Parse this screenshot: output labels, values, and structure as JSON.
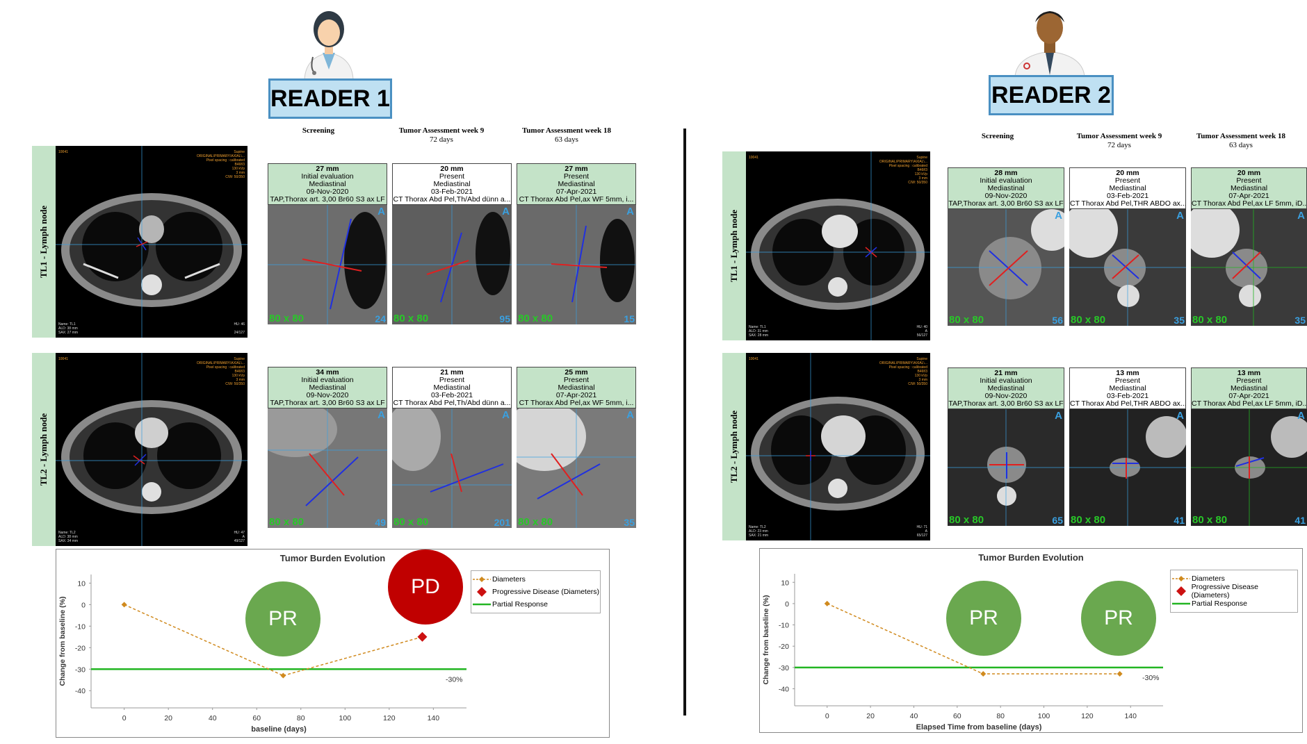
{
  "readers": [
    {
      "label": "READER 1",
      "column_headers": [
        {
          "title": "Screening",
          "sub": ""
        },
        {
          "title": "Tumor Assessment week 9",
          "sub": "72 days"
        },
        {
          "title": "Tumor Assessment week 18",
          "sub": "63 days"
        }
      ],
      "lesions": [
        {
          "name": "TL1 - Lymph node",
          "overview": {
            "tl": "10041",
            "tr": [
              "Supine",
              "ORIGINAL\\PRIMARY\\AXIAL\\...",
              "Pixel spacing : calibrated",
              "B46f/3",
              "130 kVp",
              "3 mm",
              "C/W: 50/350"
            ],
            "bl": [
              "Name: TL1",
              "ALD: 38 mm",
              "SAX: 27 mm"
            ],
            "br": [
              "HU: 46",
              "",
              "24/127"
            ]
          },
          "timepoints": [
            {
              "size": "27 mm",
              "status": "Initial evaluation",
              "location": "Mediastinal",
              "date": "09-Nov-2020",
              "series": "TAP,Thorax art. 3,00 Br60 S3 ax LF",
              "zoom": "80 x 80",
              "slice": "24"
            },
            {
              "size": "20 mm",
              "status": "Present",
              "location": "Mediastinal",
              "date": "03-Feb-2021",
              "series": "CT Thorax Abd Pel,Th/Abd dünn a...",
              "zoom": "80 x 80",
              "slice": "95"
            },
            {
              "size": "27 mm",
              "status": "Present",
              "location": "Mediastinal",
              "date": "07-Apr-2021",
              "series": "CT Thorax Abd Pel,ax WF 5mm, i...",
              "zoom": "80 x 80",
              "slice": "15"
            }
          ]
        },
        {
          "name": "TL2 - Lymph node",
          "overview": {
            "tl": "10041",
            "tr": [
              "Supine",
              "ORIGINAL\\PRIMARY\\AXIAL\\...",
              "Pixel spacing : calibrated",
              "B46f/3",
              "130 kVp",
              "3 mm",
              "C/W: 50/350"
            ],
            "bl": [
              "Name: TL2",
              "ALD: 38 mm",
              "SAX: 34 mm"
            ],
            "br": [
              "HU: 47",
              "A",
              "49/127"
            ]
          },
          "timepoints": [
            {
              "size": "34 mm",
              "status": "Initial evaluation",
              "location": "Mediastinal",
              "date": "09-Nov-2020",
              "series": "TAP,Thorax art. 3,00 Br60 S3 ax LF",
              "zoom": "80 x 80",
              "slice": "49"
            },
            {
              "size": "21 mm",
              "status": "Present",
              "location": "Mediastinal",
              "date": "03-Feb-2021",
              "series": "CT Thorax Abd Pel,Th/Abd dünn a...",
              "zoom": "80 x 80",
              "slice": "201"
            },
            {
              "size": "25 mm",
              "status": "Present",
              "location": "Mediastinal",
              "date": "07-Apr-2021",
              "series": "CT Thorax Abd Pel,ax WF 5mm, i...",
              "zoom": "80 x 80",
              "slice": "35"
            }
          ]
        }
      ],
      "chart": {
        "title": "Tumor Burden Evolution",
        "ylabel": "Change from baseline (%)",
        "xlabel": "baseline (days)",
        "threshold_label": "-30%",
        "legend": [
          "Diameters",
          "Progressive Disease (Diameters)",
          "Partial Response"
        ],
        "responses": [
          {
            "label": "PR",
            "color": "#6aa84f"
          },
          {
            "label": "PD",
            "color": "#c00000"
          }
        ]
      }
    },
    {
      "label": "READER 2",
      "column_headers": [
        {
          "title": "Screening",
          "sub": ""
        },
        {
          "title": "Tumor Assessment week 9",
          "sub": "72 days"
        },
        {
          "title": "Tumor Assessment week 18",
          "sub": "63 days"
        }
      ],
      "lesions": [
        {
          "name": "TL1 - Lymph node",
          "overview": {
            "tl": "10041",
            "tr": [
              "Supine",
              "ORIGINAL\\PRIMARY\\AXIAL\\...",
              "Pixel spacing : calibrated",
              "B46f/3",
              "130 kVp",
              "3 mm",
              "C/W: 50/350"
            ],
            "bl": [
              "Name: TL1",
              "ALD: 31 mm",
              "SAX: 28 mm"
            ],
            "br": [
              "HU: 40",
              "A",
              "56/127"
            ]
          },
          "timepoints": [
            {
              "size": "28 mm",
              "status": "Initial evaluation",
              "location": "Mediastinal",
              "date": "09-Nov-2020",
              "series": "TAP,Thorax art. 3,00 Br60 S3 ax LF",
              "zoom": "80 x 80",
              "slice": "56"
            },
            {
              "size": "20 mm",
              "status": "Present",
              "location": "Mediastinal",
              "date": "03-Feb-2021",
              "series": "CT Thorax Abd Pel,THR ABDO ax...",
              "zoom": "80 x 80",
              "slice": "35"
            },
            {
              "size": "20 mm",
              "status": "Present",
              "location": "Mediastinal",
              "date": "07-Apr-2021",
              "series": "CT Thorax Abd Pel,ax LF 5mm, iD...",
              "zoom": "80 x 80",
              "slice": "35"
            }
          ]
        },
        {
          "name": "TL2 - Lymph node",
          "overview": {
            "tl": "10041",
            "tr": [
              "Supine",
              "ORIGINAL\\PRIMARY\\AXIAL\\...",
              "Pixel spacing : calibrated",
              "B46f/3",
              "130 kVp",
              "3 mm",
              "C/W: 50/350"
            ],
            "bl": [
              "Name: TL2",
              "ALD: 23 mm",
              "SAX: 21 mm"
            ],
            "br": [
              "HU: 71",
              "A",
              "65/127"
            ]
          },
          "timepoints": [
            {
              "size": "21 mm",
              "status": "Initial evaluation",
              "location": "Mediastinal",
              "date": "09-Nov-2020",
              "series": "TAP,Thorax art. 3,00 Br60 S3 ax LF",
              "zoom": "80 x 80",
              "slice": "65"
            },
            {
              "size": "13 mm",
              "status": "Present",
              "location": "Mediastinal",
              "date": "03-Feb-2021",
              "series": "CT Thorax Abd Pel,THR ABDO ax...",
              "zoom": "80 x 80",
              "slice": "41"
            },
            {
              "size": "13 mm",
              "status": "Present",
              "location": "Mediastinal",
              "date": "07-Apr-2021",
              "series": "CT Thorax Abd Pel,ax LF 5mm, iD...",
              "zoom": "80 x 80",
              "slice": "41"
            }
          ]
        }
      ],
      "chart": {
        "title": "Tumor Burden Evolution",
        "ylabel": "Change from baseline (%)",
        "xlabel": "Elapsed Time from baseline (days)",
        "threshold_label": "-30%",
        "legend": [
          "Diameters",
          "Progressive Disease (Diameters)",
          "Partial Response"
        ],
        "responses": [
          {
            "label": "PR",
            "color": "#6aa84f"
          },
          {
            "label": "PR",
            "color": "#6aa84f"
          }
        ]
      }
    }
  ],
  "chart_data": [
    {
      "type": "line",
      "title": "Tumor Burden Evolution",
      "xlabel": "baseline (days)",
      "ylabel": "Change from baseline (%)",
      "xlim": [
        -15,
        155
      ],
      "ylim": [
        -48,
        14
      ],
      "xticks": [
        0,
        20,
        40,
        60,
        80,
        100,
        120,
        140
      ],
      "yticks": [
        10,
        0,
        -10,
        -20,
        -30,
        -40
      ],
      "series": [
        {
          "name": "Diameters",
          "x": [
            0,
            72
          ],
          "y": [
            0,
            -33
          ],
          "color": "#d08a1e"
        },
        {
          "name": "Progressive Disease (Diameters)",
          "x": [
            135
          ],
          "y": [
            -15
          ],
          "color": "#cc1111"
        }
      ],
      "connector": {
        "x": [
          72,
          135
        ],
        "y": [
          -33,
          -15
        ]
      },
      "threshold": {
        "name": "Partial Response",
        "y": -30,
        "color": "#22b522"
      },
      "legend_position": "top-right"
    },
    {
      "type": "line",
      "title": "Tumor Burden Evolution",
      "xlabel": "Elapsed Time from baseline (days)",
      "ylabel": "Change from baseline (%)",
      "xlim": [
        -15,
        155
      ],
      "ylim": [
        -48,
        14
      ],
      "xticks": [
        0,
        20,
        40,
        60,
        80,
        100,
        120,
        140
      ],
      "yticks": [
        10,
        0,
        -10,
        -20,
        -30,
        -40
      ],
      "series": [
        {
          "name": "Diameters",
          "x": [
            0,
            72,
            135
          ],
          "y": [
            0,
            -33,
            -33
          ],
          "color": "#d08a1e"
        }
      ],
      "threshold": {
        "name": "Partial Response",
        "y": -30,
        "color": "#22b522"
      },
      "legend_position": "top-right"
    }
  ]
}
